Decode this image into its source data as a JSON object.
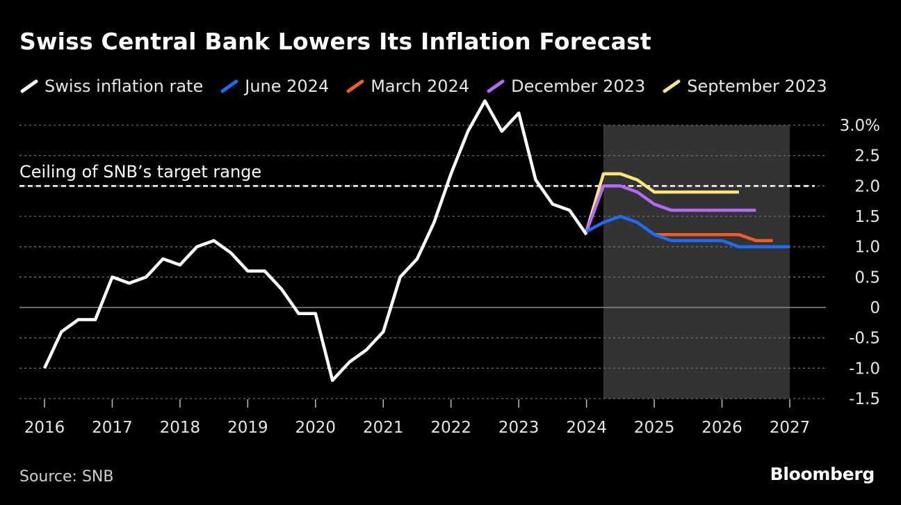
{
  "chart_data": {
    "type": "line",
    "title": "Swiss Central Bank Lowers Its Inflation Forecast",
    "xlabel": "",
    "ylabel": "",
    "xlim": [
      2016,
      2027
    ],
    "ylim": [
      -1.5,
      3.0
    ],
    "x_ticks": [
      2016,
      2017,
      2018,
      2019,
      2020,
      2021,
      2022,
      2023,
      2024,
      2025,
      2026,
      2027
    ],
    "x_tick_labels": [
      "2016",
      "2017",
      "2018",
      "2019",
      "2020",
      "2021",
      "2022",
      "2023",
      "2024",
      "2025",
      "2026",
      "2027"
    ],
    "y_ticks": [
      3.0,
      2.5,
      2.0,
      1.5,
      1.0,
      0.5,
      0,
      -0.5,
      -1.0,
      -1.5
    ],
    "y_tick_labels": [
      "3.0%",
      "2.5",
      "2.0",
      "1.5",
      "1.0",
      "0.5",
      "0",
      "-0.5",
      "-1.0",
      "-1.5"
    ],
    "grid": true,
    "legend_position": "top",
    "forecast_region": {
      "x_start": 2024.25,
      "x_end": 2027.0
    },
    "reference_line": {
      "y": 2.0,
      "label": "Ceiling of SNB’s target range"
    },
    "series": [
      {
        "name": "Swiss inflation rate",
        "color": "#ffffff",
        "x": [
          2016.0,
          2016.25,
          2016.5,
          2016.75,
          2017.0,
          2017.25,
          2017.5,
          2017.75,
          2018.0,
          2018.25,
          2018.5,
          2018.75,
          2019.0,
          2019.25,
          2019.5,
          2019.75,
          2020.0,
          2020.25,
          2020.5,
          2020.75,
          2021.0,
          2021.25,
          2021.5,
          2021.75,
          2022.0,
          2022.25,
          2022.5,
          2022.75,
          2023.0,
          2023.25,
          2023.5,
          2023.75,
          2024.0
        ],
        "values": [
          -1.0,
          -0.4,
          -0.2,
          -0.2,
          0.5,
          0.4,
          0.5,
          0.8,
          0.7,
          1.0,
          1.1,
          0.9,
          0.6,
          0.6,
          0.3,
          -0.1,
          -0.1,
          -1.2,
          -0.9,
          -0.7,
          -0.4,
          0.5,
          0.8,
          1.4,
          2.2,
          2.9,
          3.4,
          2.9,
          3.2,
          2.1,
          1.7,
          1.6,
          1.2
        ]
      },
      {
        "name": "June 2024",
        "color": "#1a6ef5",
        "x": [
          2024.0,
          2024.25,
          2024.5,
          2024.75,
          2025.0,
          2025.25,
          2025.5,
          2025.75,
          2026.0,
          2026.25,
          2026.5,
          2026.75,
          2027.0
        ],
        "values": [
          1.25,
          1.4,
          1.5,
          1.4,
          1.2,
          1.1,
          1.1,
          1.1,
          1.1,
          1.0,
          1.0,
          1.0,
          1.0
        ]
      },
      {
        "name": "March 2024",
        "color": "#f25c26",
        "x": [
          2025.0,
          2025.25,
          2025.5,
          2025.75,
          2026.0,
          2026.25,
          2026.5,
          2026.75
        ],
        "values": [
          1.2,
          1.2,
          1.2,
          1.2,
          1.2,
          1.2,
          1.1,
          1.1
        ]
      },
      {
        "name": "December 2023",
        "color": "#b36bf5",
        "x": [
          2024.0,
          2024.25,
          2024.5,
          2024.75,
          2025.0,
          2025.25,
          2025.5,
          2025.75,
          2026.0,
          2026.25,
          2026.5
        ],
        "values": [
          1.25,
          2.0,
          2.0,
          1.9,
          1.7,
          1.6,
          1.6,
          1.6,
          1.6,
          1.6,
          1.6
        ]
      },
      {
        "name": "September 2023",
        "color": "#fae677",
        "x": [
          2024.0,
          2024.25,
          2024.5,
          2024.75,
          2025.0,
          2025.25,
          2025.5,
          2025.75,
          2026.0,
          2026.25
        ],
        "values": [
          1.25,
          2.2,
          2.2,
          2.1,
          1.9,
          1.9,
          1.9,
          1.9,
          1.9,
          1.9
        ]
      }
    ]
  },
  "footer": {
    "source": "Source: SNB",
    "brand": "Bloomberg"
  }
}
